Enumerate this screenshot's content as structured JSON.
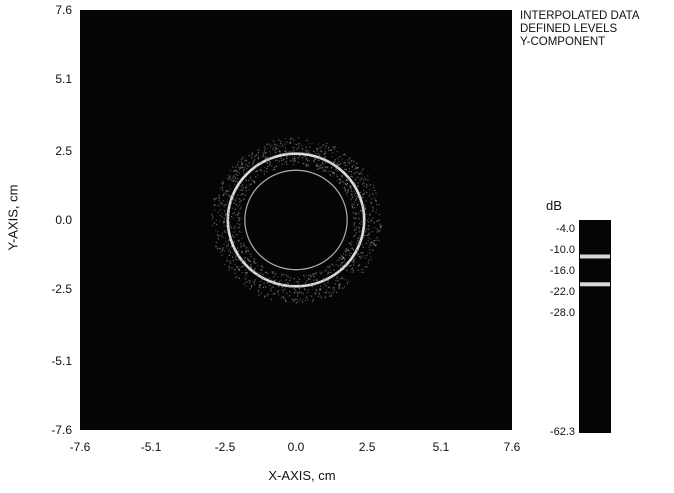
{
  "chart_data": {
    "type": "heatmap",
    "xlabel": "X-AXIS, cm",
    "ylabel": "Y-AXIS, cm",
    "xlim": [
      -7.6,
      7.6
    ],
    "ylim": [
      -7.6,
      7.6
    ],
    "xticks": [
      "-7.6",
      "-5.1",
      "-2.5",
      "0.0",
      "2.5",
      "5.1",
      "7.6"
    ],
    "yticks": [
      "7.6",
      "5.1",
      "2.5",
      "0.0",
      "-2.5",
      "-5.1",
      "-7.6"
    ],
    "annotations": [
      "INTERPOLATED DATA",
      "DEFINED LEVELS",
      "Y-COMPONENT"
    ],
    "colorbar": {
      "title": "dB",
      "levels": [
        "-4.0",
        "-10.0",
        "-16.0",
        "-22.0",
        "-28.0",
        "-62.3"
      ],
      "level_values": [
        -4.0,
        -10.0,
        -16.0,
        -22.0,
        -28.0,
        -62.3
      ],
      "bright_bands_db": [
        -11.5,
        -19.5
      ]
    },
    "rings": [
      {
        "center": [
          0.0,
          0.0
        ],
        "radius_cm": 2.4,
        "level_db": -10.0,
        "style": "bright"
      },
      {
        "center": [
          0.0,
          0.0
        ],
        "radius_cm": 1.8,
        "level_db": -16.0,
        "style": "thin"
      },
      {
        "center": [
          0.0,
          0.0
        ],
        "radius_inner_cm": 2.0,
        "radius_outer_cm": 3.0,
        "level_db": -22.0,
        "style": "speckle"
      }
    ],
    "grid": false,
    "legend": "colorbar-right"
  },
  "colors": {
    "background": "#050505",
    "ring": "#e8e8e8",
    "speckle": "#8a8a8a"
  }
}
